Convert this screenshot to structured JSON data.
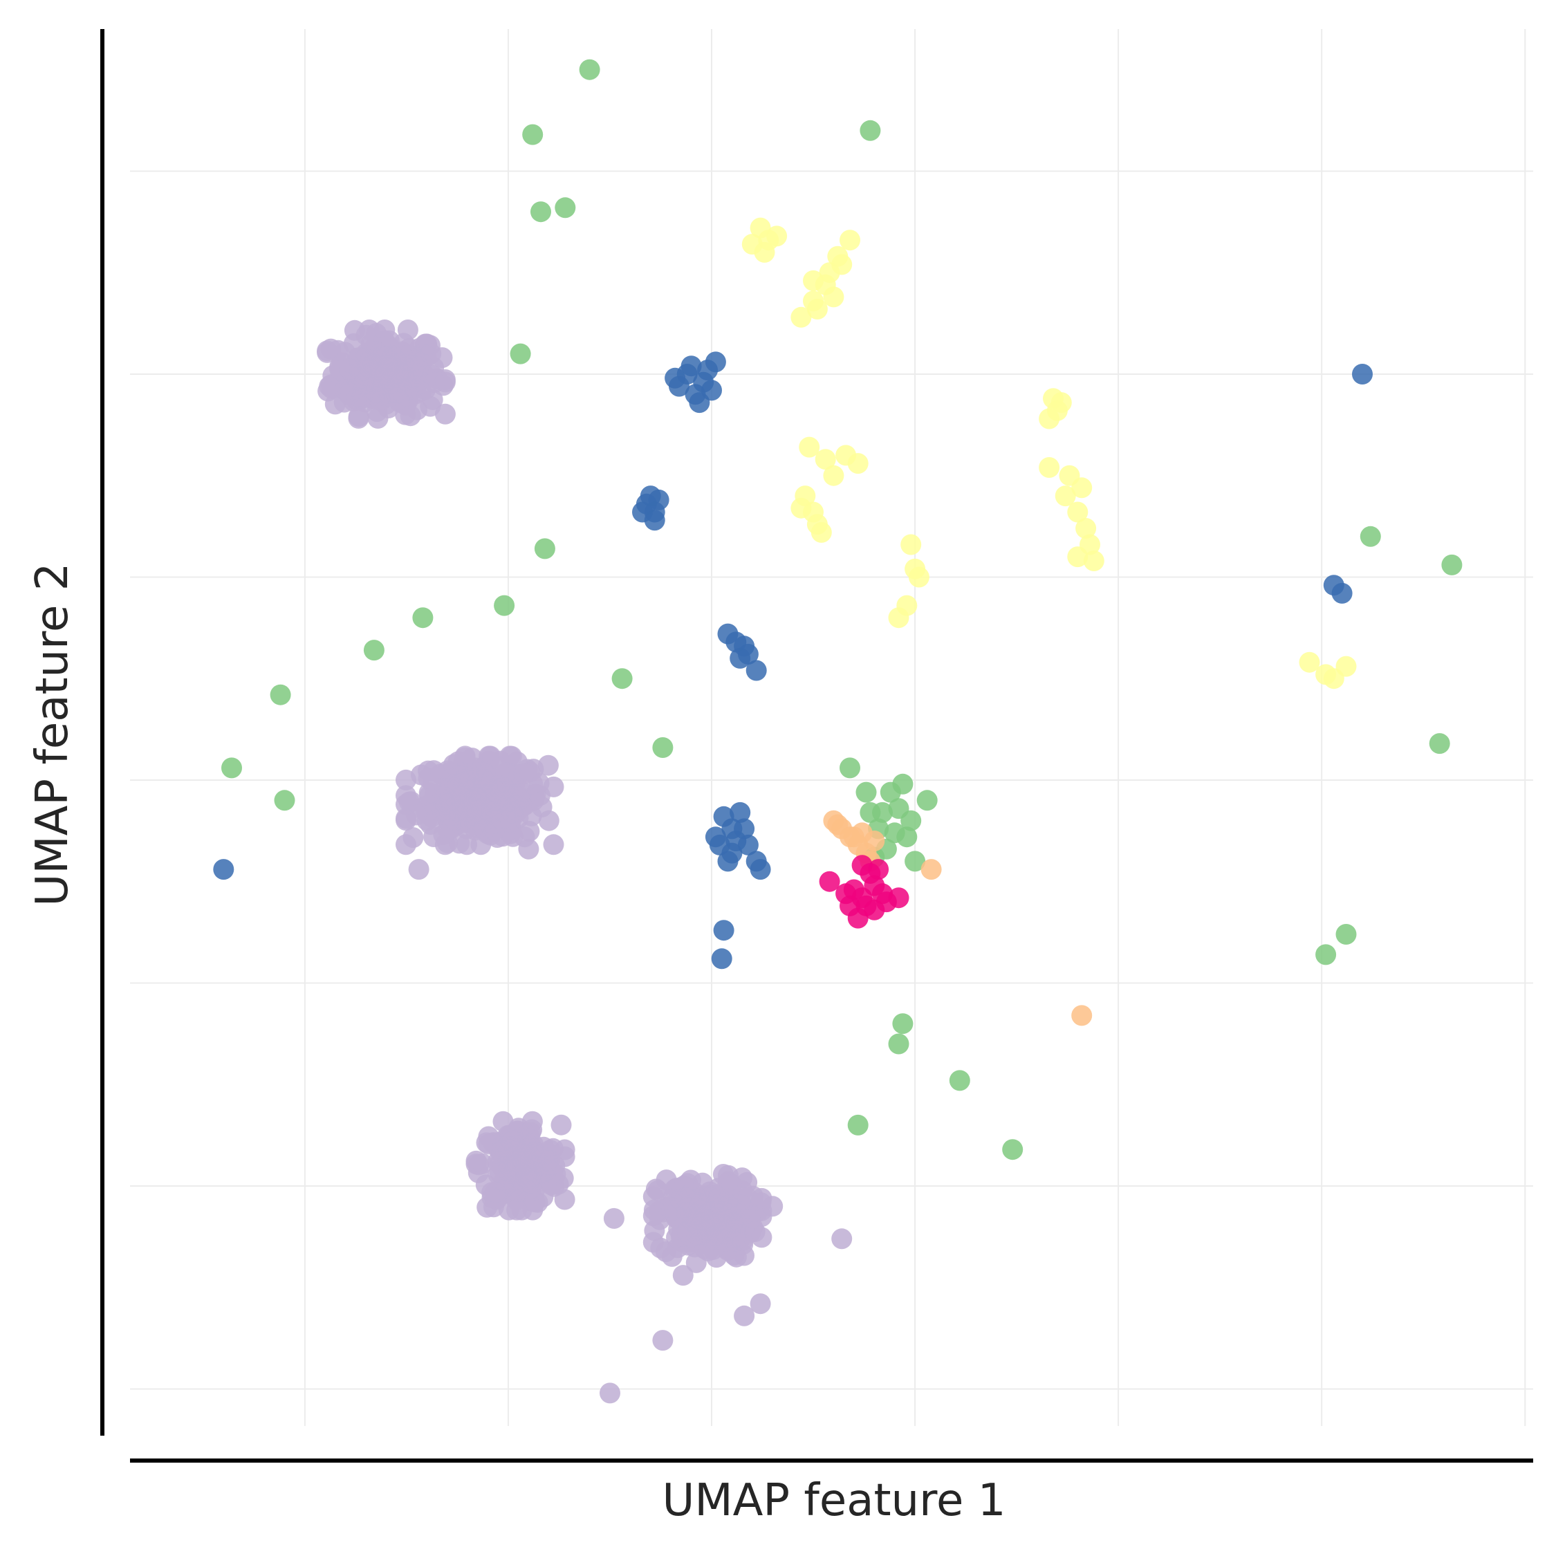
{
  "chart_data": {
    "type": "scatter",
    "title": "",
    "xlabel": "UMAP feature 1",
    "ylabel": "UMAP feature 2",
    "xlim": [
      -8.3,
      26.2
    ],
    "ylim": [
      -7.15,
      27.5
    ],
    "x_gridlines": [
      -4,
      1,
      6,
      11,
      16,
      21,
      26
    ],
    "y_gridlines": [
      -6,
      -1,
      4,
      9,
      14,
      19,
      24
    ],
    "grid": true,
    "tick_labels_shown": false,
    "legend": "none",
    "point_alpha": 0.85,
    "series": [
      {
        "color": "#beaed4",
        "clusters": [
          {
            "center": [
              -2.0,
              19.0
            ],
            "spread": [
              1.2,
              0.9
            ],
            "count": 230
          },
          {
            "center": [
              0.3,
              8.5
            ],
            "spread": [
              1.5,
              0.9
            ],
            "count": 260
          },
          {
            "center": [
              1.3,
              -0.5
            ],
            "spread": [
              0.9,
              0.9
            ],
            "count": 200
          },
          {
            "center": [
              5.9,
              -1.8
            ],
            "spread": [
              1.1,
              0.9
            ],
            "count": 220
          }
        ],
        "points": [
          [
            -3.4,
            18.7
          ],
          [
            3.6,
            -1.8
          ],
          [
            7.5,
            -1.5
          ],
          [
            9.2,
            -2.3
          ],
          [
            5.3,
            -3.2
          ],
          [
            7.2,
            -3.9
          ],
          [
            4.8,
            -4.8
          ],
          [
            3.5,
            -6.1
          ],
          [
            6.8,
            -4.2
          ],
          [
            1.5,
            7.3
          ],
          [
            2.0,
            8.0
          ],
          [
            -0.6,
            8.6
          ],
          [
            0.8,
            9.3
          ],
          [
            -1.2,
            6.8
          ],
          [
            1.4,
            7.6
          ]
        ]
      },
      {
        "color": "#386cb0",
        "points": [
          [
            5.4,
            19.0
          ],
          [
            5.8,
            18.8
          ],
          [
            5.6,
            18.5
          ],
          [
            5.9,
            19.1
          ],
          [
            5.2,
            18.7
          ],
          [
            5.7,
            18.3
          ],
          [
            6.0,
            18.6
          ],
          [
            5.5,
            19.2
          ],
          [
            5.1,
            18.9
          ],
          [
            6.1,
            19.3
          ],
          [
            4.4,
            15.8
          ],
          [
            4.6,
            15.6
          ],
          [
            4.5,
            16.0
          ],
          [
            4.7,
            15.9
          ],
          [
            4.3,
            15.6
          ],
          [
            4.6,
            15.4
          ],
          [
            6.4,
            12.6
          ],
          [
            6.6,
            12.4
          ],
          [
            6.8,
            12.3
          ],
          [
            6.9,
            12.1
          ],
          [
            6.7,
            12.0
          ],
          [
            7.1,
            11.7
          ],
          [
            6.3,
            8.1
          ],
          [
            6.5,
            7.8
          ],
          [
            6.2,
            7.4
          ],
          [
            6.6,
            7.5
          ],
          [
            6.9,
            7.4
          ],
          [
            7.1,
            7.0
          ],
          [
            6.4,
            7.0
          ],
          [
            6.8,
            7.8
          ],
          [
            6.1,
            7.6
          ],
          [
            6.7,
            8.2
          ],
          [
            7.2,
            6.8
          ],
          [
            6.5,
            7.2
          ],
          [
            6.3,
            5.3
          ],
          [
            6.25,
            4.6
          ],
          [
            -6.0,
            6.8
          ],
          [
            22.0,
            19.0
          ],
          [
            21.3,
            13.8
          ],
          [
            21.5,
            13.6
          ]
        ]
      },
      {
        "color": "#7fc97f",
        "points": [
          [
            3.0,
            26.5
          ],
          [
            1.6,
            24.9
          ],
          [
            9.9,
            25.0
          ],
          [
            1.8,
            23.0
          ],
          [
            2.4,
            23.1
          ],
          [
            1.3,
            19.5
          ],
          [
            1.9,
            14.7
          ],
          [
            -1.1,
            13.0
          ],
          [
            0.9,
            13.3
          ],
          [
            -2.3,
            12.2
          ],
          [
            -4.6,
            11.1
          ],
          [
            3.8,
            11.5
          ],
          [
            -5.8,
            9.3
          ],
          [
            -4.5,
            8.5
          ],
          [
            4.8,
            9.8
          ],
          [
            22.2,
            15.0
          ],
          [
            24.2,
            14.3
          ],
          [
            23.9,
            9.9
          ],
          [
            21.6,
            5.2
          ],
          [
            21.1,
            4.7
          ],
          [
            10.7,
            3.0
          ],
          [
            10.6,
            2.5
          ],
          [
            12.1,
            1.6
          ],
          [
            9.6,
            0.5
          ],
          [
            13.4,
            -0.1
          ],
          [
            9.4,
            9.3
          ],
          [
            10.4,
            8.7
          ],
          [
            10.2,
            8.2
          ],
          [
            10.6,
            8.3
          ],
          [
            10.9,
            8.0
          ],
          [
            9.9,
            8.2
          ],
          [
            10.5,
            7.7
          ],
          [
            10.1,
            7.8
          ],
          [
            10.3,
            7.3
          ],
          [
            10.8,
            7.6
          ],
          [
            11.0,
            7.0
          ],
          [
            11.3,
            8.5
          ],
          [
            9.8,
            8.7
          ],
          [
            10.0,
            7.1
          ],
          [
            10.7,
            8.9
          ]
        ]
      },
      {
        "color": "#ffff99",
        "points": [
          [
            7.2,
            22.6
          ],
          [
            7.0,
            22.2
          ],
          [
            7.4,
            22.3
          ],
          [
            7.6,
            22.4
          ],
          [
            7.3,
            22.0
          ],
          [
            8.5,
            21.3
          ],
          [
            8.9,
            21.5
          ],
          [
            9.1,
            21.9
          ],
          [
            9.4,
            22.3
          ],
          [
            9.2,
            21.7
          ],
          [
            8.8,
            21.2
          ],
          [
            8.6,
            20.6
          ],
          [
            8.2,
            20.4
          ],
          [
            8.5,
            20.8
          ],
          [
            9.0,
            20.9
          ],
          [
            8.4,
            17.2
          ],
          [
            8.8,
            16.9
          ],
          [
            9.3,
            17.0
          ],
          [
            9.6,
            16.8
          ],
          [
            9.0,
            16.5
          ],
          [
            8.3,
            16.0
          ],
          [
            8.5,
            15.6
          ],
          [
            8.7,
            15.1
          ],
          [
            8.2,
            15.7
          ],
          [
            8.6,
            15.3
          ],
          [
            10.9,
            14.8
          ],
          [
            11.0,
            14.2
          ],
          [
            11.1,
            14.0
          ],
          [
            10.6,
            13.0
          ],
          [
            10.8,
            13.3
          ],
          [
            14.4,
            18.4
          ],
          [
            14.5,
            18.1
          ],
          [
            14.3,
            17.9
          ],
          [
            14.6,
            18.3
          ],
          [
            14.3,
            16.7
          ],
          [
            14.8,
            16.5
          ],
          [
            15.1,
            16.2
          ],
          [
            14.7,
            16.0
          ],
          [
            15.0,
            15.6
          ],
          [
            15.2,
            15.2
          ],
          [
            15.3,
            14.8
          ],
          [
            15.0,
            14.5
          ],
          [
            15.4,
            14.4
          ],
          [
            20.7,
            11.9
          ],
          [
            21.1,
            11.6
          ],
          [
            21.6,
            11.8
          ],
          [
            21.3,
            11.5
          ]
        ]
      },
      {
        "color": "#fdc086",
        "points": [
          [
            9.0,
            8.0
          ],
          [
            9.2,
            7.8
          ],
          [
            9.4,
            7.6
          ],
          [
            9.6,
            7.4
          ],
          [
            9.8,
            7.2
          ],
          [
            9.5,
            7.6
          ],
          [
            9.7,
            7.7
          ],
          [
            10.0,
            7.5
          ],
          [
            9.1,
            7.9
          ],
          [
            9.9,
            7.0
          ],
          [
            11.4,
            6.8
          ],
          [
            15.1,
            3.2
          ]
        ]
      },
      {
        "color": "#f0027f",
        "points": [
          [
            8.9,
            6.5
          ],
          [
            9.9,
            6.7
          ],
          [
            9.5,
            6.3
          ],
          [
            10.0,
            6.4
          ],
          [
            9.7,
            6.1
          ],
          [
            10.2,
            6.2
          ],
          [
            9.8,
            5.9
          ],
          [
            9.6,
            5.6
          ],
          [
            10.3,
            6.0
          ],
          [
            10.6,
            6.1
          ],
          [
            9.4,
            5.9
          ],
          [
            10.1,
            6.8
          ],
          [
            9.7,
            6.9
          ],
          [
            10.0,
            5.8
          ],
          [
            9.3,
            6.2
          ]
        ]
      }
    ]
  }
}
